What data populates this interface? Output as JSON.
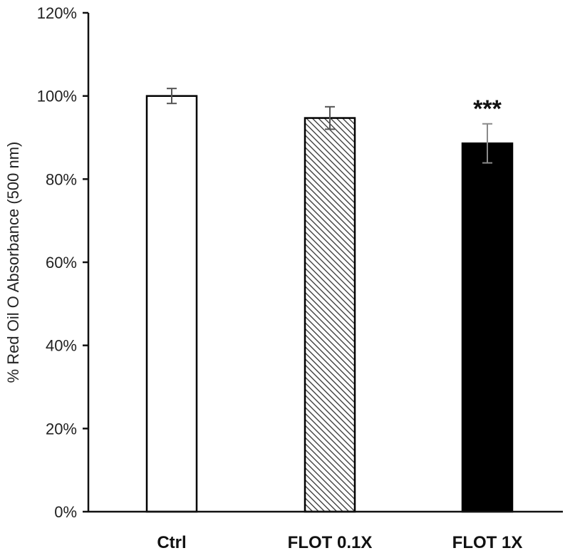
{
  "chart_data": {
    "type": "bar",
    "title": "",
    "xlabel": "",
    "ylabel": "% Red Oil O Absorbance (500 nm)",
    "ylim": [
      0,
      120
    ],
    "yticks": [
      0,
      20,
      40,
      60,
      80,
      100,
      120
    ],
    "ytick_labels": [
      "0%",
      "20%",
      "40%",
      "60%",
      "80%",
      "100%",
      "120%"
    ],
    "categories": [
      "Ctrl",
      "FLOT 0.1X",
      "FLOT 1X"
    ],
    "values": [
      100,
      94.7,
      88.6
    ],
    "error": [
      1.8,
      2.7,
      4.7
    ],
    "fills": [
      "white",
      "hatched",
      "black"
    ],
    "annotations": [
      {
        "category": "FLOT 1X",
        "text": "***"
      }
    ],
    "grid": false,
    "legend": "none"
  },
  "colors": {
    "axis": "#111111",
    "bar_edge": "#000000",
    "solid": "#000000",
    "hatch": "#333333",
    "error_bar": "#555555"
  }
}
